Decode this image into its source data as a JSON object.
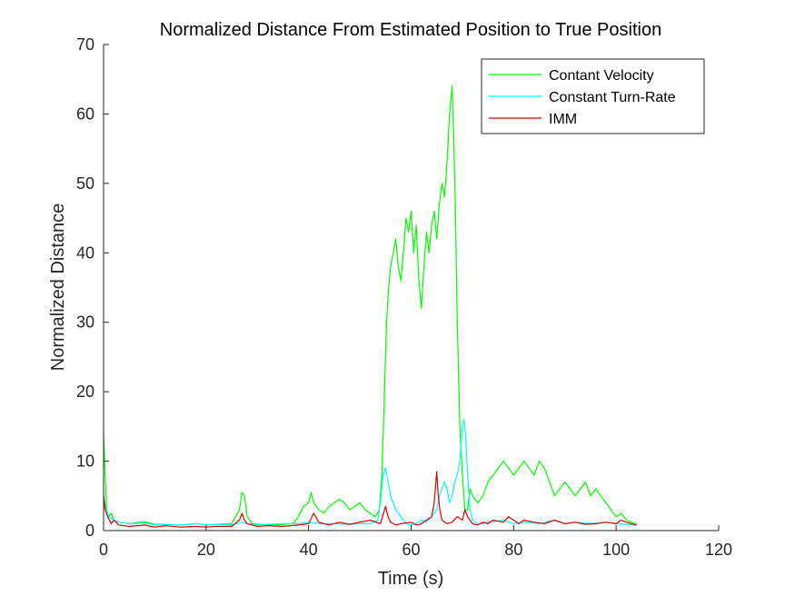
{
  "chart_data": {
    "type": "line",
    "title": "Normalized Distance From Estimated Position to True Position",
    "xlabel": "Time (s)",
    "ylabel": "Normalized Distance",
    "xlim": [
      0,
      120
    ],
    "ylim": [
      0,
      70
    ],
    "xticks": [
      0,
      20,
      40,
      60,
      80,
      100,
      120
    ],
    "yticks": [
      0,
      10,
      20,
      30,
      40,
      50,
      60,
      70
    ],
    "grid": false,
    "legend_position": "top-right",
    "series": [
      {
        "name": "Contant Velocity",
        "color": "#00ff00",
        "x": [
          0,
          0.3,
          0.6,
          1,
          1.5,
          2,
          3,
          5,
          8,
          10,
          12,
          15,
          18,
          20,
          22,
          25,
          26.5,
          27,
          27.5,
          28,
          29,
          32,
          35,
          37,
          38,
          39,
          40,
          40.5,
          41,
          42,
          43,
          44,
          45,
          46,
          47,
          48,
          49,
          50,
          51,
          52,
          53,
          53.8,
          54.3,
          54.8,
          55.2,
          55.6,
          56,
          56.5,
          57,
          57.5,
          58,
          58.5,
          59,
          59.5,
          60,
          60.5,
          61,
          61.5,
          62,
          62.5,
          63,
          63.5,
          64,
          64.5,
          65,
          65.5,
          66,
          66.5,
          67,
          67.5,
          68,
          68.3,
          68.6,
          69,
          69.5,
          70,
          70.5,
          71,
          71.5,
          72,
          73,
          74,
          75,
          76,
          77,
          78,
          79,
          80,
          81,
          82,
          83,
          84,
          85,
          86,
          87,
          88,
          89,
          90,
          91,
          92,
          93,
          94,
          95,
          96,
          97,
          98,
          99,
          100,
          101,
          102,
          103,
          104
        ],
        "y": [
          14,
          8,
          3,
          2,
          2.5,
          1.5,
          1.2,
          1,
          1.3,
          0.9,
          0.9,
          0.8,
          1,
          0.8,
          0.9,
          1,
          3,
          5.5,
          5,
          2,
          1,
          0.8,
          0.9,
          1,
          2,
          3.5,
          4,
          5.5,
          4,
          3,
          2.5,
          3.5,
          4,
          4.5,
          4,
          3,
          3.5,
          4,
          3,
          2.5,
          2,
          3,
          8,
          20,
          30,
          35,
          38,
          40,
          42,
          38,
          36,
          40,
          45,
          43,
          46,
          40,
          44,
          36,
          32,
          38,
          43,
          40,
          44,
          46,
          42,
          47,
          50,
          48,
          53,
          60,
          64,
          57,
          48,
          30,
          15,
          8,
          3,
          3,
          6,
          5,
          4,
          5,
          7,
          8,
          9,
          10,
          9,
          8,
          9,
          10,
          9,
          8,
          10,
          9,
          7,
          5,
          6,
          7,
          6,
          5,
          6,
          7,
          5,
          6,
          5,
          4,
          3,
          2,
          2.5,
          1.5,
          1.2,
          1
        ],
        "label_name": "Contant Velocity"
      },
      {
        "name": "Constant Turn-Rate",
        "color": "#00ffff",
        "x": [
          0,
          0.5,
          1,
          2,
          3,
          5,
          8,
          10,
          12,
          15,
          18,
          20,
          22,
          25,
          27,
          28,
          30,
          32,
          35,
          38,
          40,
          42,
          45,
          48,
          50,
          52,
          53.5,
          54,
          54.5,
          55,
          55.5,
          56,
          56.5,
          57,
          58,
          59,
          60,
          61,
          62,
          63,
          64,
          65,
          65.5,
          66,
          66.5,
          67,
          67.5,
          68,
          68.5,
          69,
          69.5,
          70,
          70.3,
          70.6,
          71,
          71.5,
          72,
          73,
          74,
          75,
          78,
          80,
          82,
          85,
          88,
          90,
          92,
          95,
          98,
          100,
          102,
          104
        ],
        "y": [
          5,
          3,
          2,
          1.5,
          1.2,
          1,
          1.1,
          0.8,
          0.9,
          0.8,
          1,
          0.8,
          0.9,
          0.8,
          1.2,
          1,
          0.8,
          0.9,
          1,
          1,
          1.2,
          1,
          1,
          0.9,
          1,
          1,
          1.5,
          4,
          8,
          9,
          7,
          5,
          4,
          3,
          2,
          1,
          0.8,
          1,
          1.5,
          1.2,
          2,
          3,
          5,
          6,
          7,
          6,
          4,
          5,
          7,
          8,
          10,
          15,
          16,
          14,
          8,
          3,
          1.5,
          1,
          1,
          1.2,
          1.5,
          1,
          1.2,
          1,
          1.5,
          1,
          1.2,
          1,
          1.2,
          1,
          0.9,
          0.8
        ],
        "label_name": "Constant Turn-Rate"
      },
      {
        "name": "IMM",
        "color": "#dd0000",
        "x": [
          0,
          0.3,
          0.8,
          1.5,
          2,
          3,
          5,
          8,
          10,
          12,
          15,
          18,
          20,
          22,
          25,
          26.5,
          27,
          27.5,
          28,
          30,
          32,
          35,
          38,
          40,
          41,
          42,
          44,
          46,
          48,
          50,
          52,
          54,
          55,
          55.5,
          56,
          57,
          58,
          60,
          61,
          62,
          63,
          64,
          64.5,
          65,
          65.3,
          65.6,
          66,
          67,
          68,
          69,
          70,
          70.5,
          71,
          72,
          73,
          74,
          75,
          76,
          78,
          79,
          80,
          81,
          82,
          84,
          86,
          88,
          90,
          92,
          94,
          96,
          98,
          100,
          101,
          102,
          104
        ],
        "y": [
          5,
          3,
          2,
          1,
          1.5,
          0.8,
          0.6,
          0.8,
          0.5,
          0.7,
          0.5,
          0.6,
          0.5,
          0.6,
          0.6,
          1.5,
          2.5,
          1.5,
          1,
          0.6,
          0.7,
          0.6,
          0.8,
          1,
          2.5,
          1.2,
          0.8,
          1.2,
          0.9,
          1.2,
          1.5,
          1,
          3.5,
          2,
          1.2,
          0.8,
          1,
          1.2,
          0.8,
          1,
          1.5,
          2,
          4,
          8.5,
          5,
          3,
          1.5,
          1,
          1.2,
          2,
          1.5,
          3,
          2,
          1,
          0.8,
          1.2,
          1,
          1.5,
          1.2,
          2,
          1.5,
          1,
          1.5,
          1.2,
          1,
          1.5,
          1,
          1.2,
          0.9,
          1,
          1.2,
          1,
          1.5,
          1.2,
          0.8
        ]
      }
    ]
  }
}
